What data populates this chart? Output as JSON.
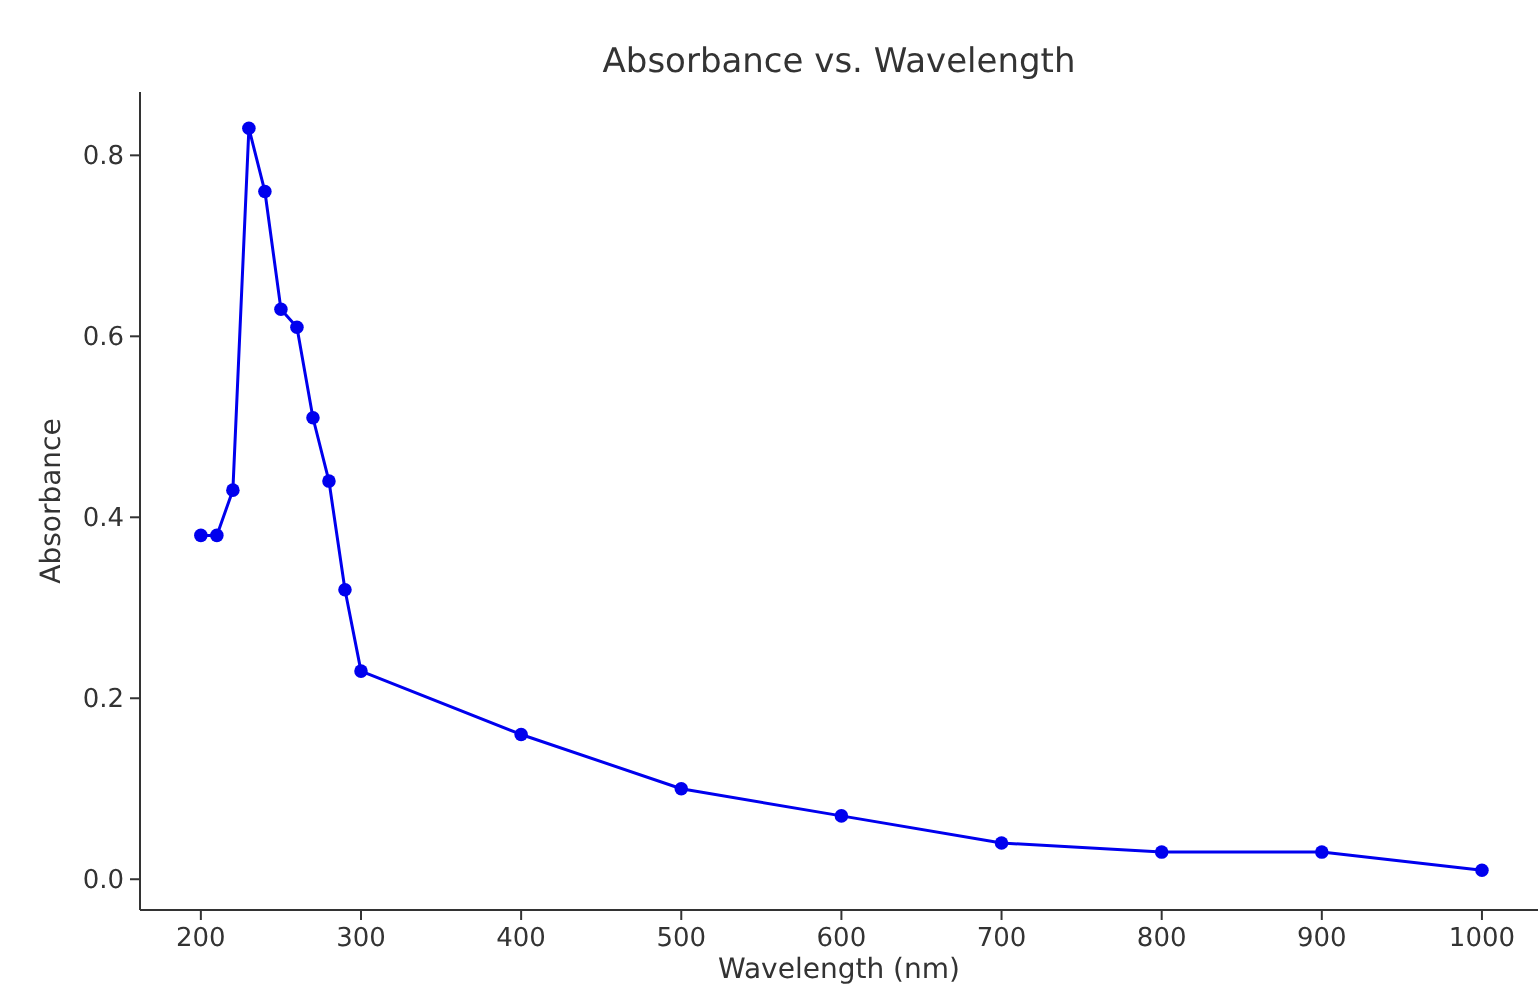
{
  "chart_data": {
    "type": "line",
    "title": "Absorbance vs. Wavelength",
    "xlabel": "Wavelength (nm)",
    "ylabel": "Absorbance",
    "x": [
      200,
      210,
      220,
      230,
      240,
      250,
      260,
      270,
      280,
      290,
      300,
      400,
      500,
      600,
      700,
      800,
      900,
      1000
    ],
    "series": [
      {
        "color": "#0000ee",
        "values": [
          0.38,
          0.38,
          0.43,
          0.83,
          0.76,
          0.63,
          0.61,
          0.51,
          0.44,
          0.32,
          0.23,
          0.16,
          0.1,
          0.07,
          0.04,
          0.03,
          0.03,
          0.01
        ]
      }
    ],
    "xlim": [
      162,
      1035
    ],
    "ylim": [
      -0.034,
      0.87
    ],
    "xticks": [
      200,
      300,
      400,
      500,
      600,
      700,
      800,
      900,
      1000
    ],
    "yticks": [
      {
        "value": 0,
        "label": "0.0"
      },
      {
        "value": 0.2,
        "label": "0.2"
      },
      {
        "value": 0.4,
        "label": "0.4"
      },
      {
        "value": 0.6,
        "label": "0.6"
      },
      {
        "value": 0.8,
        "label": "0.8"
      }
    ],
    "marker": "circle",
    "grid": false
  }
}
